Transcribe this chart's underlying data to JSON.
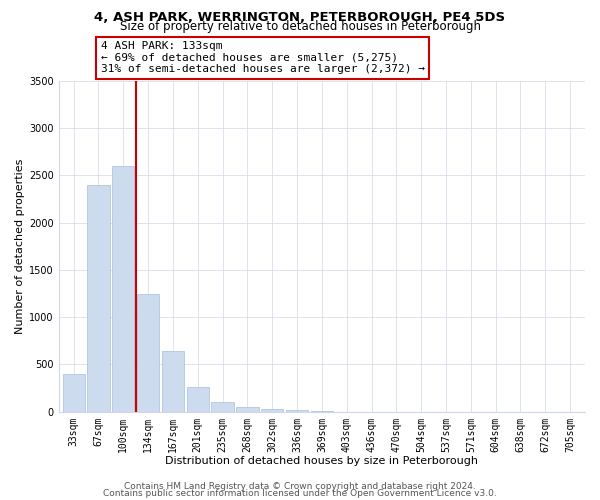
{
  "title": "4, ASH PARK, WERRINGTON, PETERBOROUGH, PE4 5DS",
  "subtitle": "Size of property relative to detached houses in Peterborough",
  "xlabel": "Distribution of detached houses by size in Peterborough",
  "ylabel": "Number of detached properties",
  "bar_labels": [
    "33sqm",
    "67sqm",
    "100sqm",
    "134sqm",
    "167sqm",
    "201sqm",
    "235sqm",
    "268sqm",
    "302sqm",
    "336sqm",
    "369sqm",
    "403sqm",
    "436sqm",
    "470sqm",
    "504sqm",
    "537sqm",
    "571sqm",
    "604sqm",
    "638sqm",
    "672sqm",
    "705sqm"
  ],
  "bar_values": [
    400,
    2400,
    2600,
    1250,
    640,
    260,
    100,
    50,
    30,
    15,
    5,
    0,
    0,
    0,
    0,
    0,
    0,
    0,
    0,
    0,
    0
  ],
  "bar_color": "#ccdcee",
  "bar_edge_color": "#a8bfd8",
  "vline_x": 2.5,
  "vline_color": "#cc0000",
  "annotation_text": "4 ASH PARK: 133sqm\n← 69% of detached houses are smaller (5,275)\n31% of semi-detached houses are larger (2,372) →",
  "annotation_box_color": "#ffffff",
  "annotation_box_edge": "#cc0000",
  "ylim": [
    0,
    3500
  ],
  "yticks": [
    0,
    500,
    1000,
    1500,
    2000,
    2500,
    3000,
    3500
  ],
  "footer_line1": "Contains HM Land Registry data © Crown copyright and database right 2024.",
  "footer_line2": "Contains public sector information licensed under the Open Government Licence v3.0.",
  "fig_bg_color": "#ffffff",
  "plot_bg_color": "#ffffff",
  "title_fontsize": 9.5,
  "subtitle_fontsize": 8.5,
  "axis_label_fontsize": 8,
  "tick_fontsize": 7,
  "annotation_fontsize": 8,
  "footer_fontsize": 6.5,
  "grid_color": "#d0d8e8"
}
